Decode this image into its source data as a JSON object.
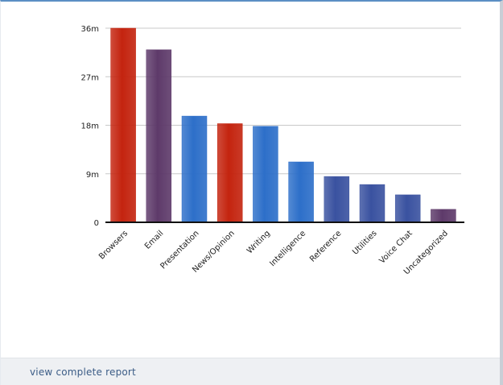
{
  "footer": {
    "report_link": "view complete report"
  },
  "colors": {
    "red": "#c4240f",
    "purple": "#5e3a6a",
    "blue": "#2d6fc9",
    "indigo": "#3a52a0",
    "frame_top": "#5b8fc4",
    "footer_bg": "#eef0f3",
    "link": "#3b5c86"
  },
  "chart_data": {
    "type": "bar",
    "title": "",
    "xlabel": "",
    "ylabel": "",
    "categories": [
      "Browsers",
      "Email",
      "Presentation",
      "News/Opinion",
      "Writing",
      "Intelligence",
      "Reference",
      "Utilities",
      "Voice Chat",
      "Uncategorized"
    ],
    "values": [
      36,
      32,
      19.7,
      18.3,
      17.8,
      11.2,
      8.5,
      7,
      5.1,
      2.4
    ],
    "unit": "m",
    "bar_colors": [
      "red",
      "purple",
      "blue",
      "red",
      "blue",
      "blue",
      "indigo",
      "indigo",
      "indigo",
      "purple"
    ],
    "ylim": [
      0,
      36
    ],
    "yticks": [
      0,
      9,
      18,
      27,
      36
    ],
    "ytick_labels": [
      "0",
      "9m",
      "18m",
      "27m",
      "36m"
    ],
    "grid": true,
    "legend": "none"
  }
}
